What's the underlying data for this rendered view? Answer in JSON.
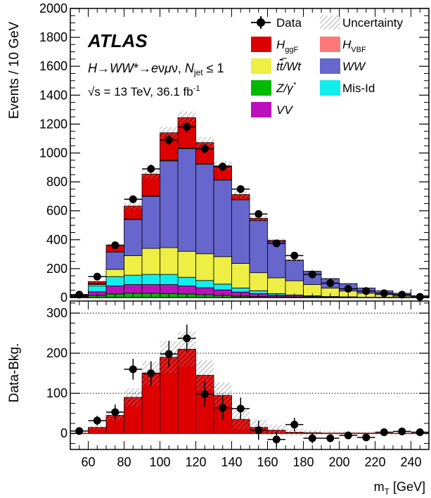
{
  "chart_data": [
    {
      "panel": "main",
      "type": "stacked-histogram",
      "experiment": "ATLAS",
      "process_label": "H→WW*→eνμν, N_jet ≤ 1",
      "energy_label": "√s = 13 TeV, 36.1 fb⁻¹",
      "ylabel": "Events / 10 GeV",
      "xlabel": "m_T [GeV]",
      "xlim": [
        50,
        250
      ],
      "ylim": [
        0,
        2000
      ],
      "yticks": [
        0,
        200,
        400,
        600,
        800,
        1000,
        1200,
        1400,
        1600,
        1800,
        2000
      ],
      "bin_edges": [
        50,
        60,
        70,
        80,
        90,
        100,
        110,
        120,
        130,
        140,
        150,
        160,
        170,
        180,
        190,
        200,
        210,
        220,
        230,
        240,
        250
      ],
      "stack": [
        {
          "name": "Z/γ*",
          "color": "#00bb00",
          "values": [
            5,
            15,
            25,
            30,
            30,
            28,
            25,
            20,
            15,
            10,
            7,
            5,
            3,
            2,
            1,
            1,
            0,
            0,
            0,
            0
          ]
        },
        {
          "name": "VV",
          "color": "#bb11bb",
          "values": [
            5,
            25,
            55,
            60,
            60,
            62,
            55,
            48,
            38,
            28,
            20,
            12,
            8,
            5,
            3,
            2,
            1,
            1,
            1,
            0
          ]
        },
        {
          "name": "Mis-Id",
          "color": "#11eeee",
          "values": [
            5,
            40,
            65,
            65,
            70,
            70,
            60,
            50,
            40,
            28,
            20,
            10,
            7,
            5,
            3,
            2,
            1,
            1,
            0,
            0
          ]
        },
        {
          "name": "t̅t/Wt",
          "color": "#eeee44",
          "values": [
            2,
            10,
            50,
            135,
            180,
            185,
            180,
            185,
            190,
            170,
            125,
            110,
            98,
            78,
            58,
            40,
            28,
            18,
            9,
            4
          ]
        },
        {
          "name": "WW",
          "color": "#6666cc",
          "values": [
            0,
            5,
            120,
            250,
            360,
            600,
            710,
            620,
            530,
            440,
            360,
            250,
            140,
            90,
            65,
            50,
            35,
            27,
            20,
            10
          ]
        },
        {
          "name": "H_VBF",
          "color": "#ff7777",
          "values": [
            0,
            1,
            2,
            3,
            4,
            5,
            5,
            4,
            3,
            2,
            1,
            1,
            0,
            0,
            0,
            0,
            0,
            0,
            0,
            0
          ]
        },
        {
          "name": "H_ggF",
          "color": "#dd0000",
          "values": [
            0,
            15,
            45,
            90,
            150,
            190,
            210,
            145,
            95,
            35,
            15,
            8,
            3,
            2,
            1,
            1,
            1,
            0,
            0,
            0
          ]
        }
      ],
      "data": {
        "name": "Data",
        "values": [
          20,
          145,
          362,
          680,
          890,
          1090,
          1180,
          1030,
          905,
          750,
          578,
          375,
          290,
          160,
          100,
          60,
          45,
          30,
          20,
          5
        ]
      },
      "uncertainty_label": "Uncertainty",
      "legend": [
        "Data",
        "Uncertainty",
        "H_ggF",
        "H_VBF",
        "t̅t/Wt",
        "WW",
        "Z/γ*",
        "Mis-Id",
        "VV"
      ],
      "legend_placement": "top-right"
    },
    {
      "panel": "ratio",
      "type": "histogram",
      "ylabel": "Data-Bkg.",
      "xlabel": "m_T [GeV]",
      "xlim": [
        50,
        250
      ],
      "ylim": [
        -40,
        330
      ],
      "yticks": [
        0,
        100,
        200,
        300
      ],
      "xticks": [
        60,
        80,
        100,
        120,
        140,
        160,
        180,
        200,
        220,
        240
      ],
      "grid": "horizontal dotted",
      "signal": {
        "name": "H_ggF",
        "color": "#dd0000",
        "values": [
          0,
          15,
          45,
          90,
          150,
          190,
          210,
          145,
          95,
          35,
          15,
          8,
          3,
          2,
          1,
          1,
          1,
          0,
          0,
          0
        ]
      },
      "data": {
        "name": "Data",
        "values": [
          6,
          32,
          53,
          160,
          150,
          198,
          237,
          98,
          64,
          62,
          8,
          -15,
          22,
          -12,
          -12,
          -5,
          -10,
          3,
          5,
          3
        ]
      }
    }
  ]
}
